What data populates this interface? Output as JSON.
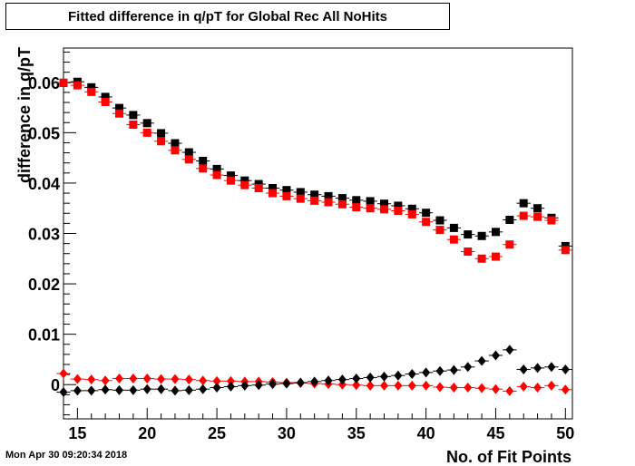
{
  "title": "Fitted difference in q/pT for Global Rec All NoHits",
  "timestamp": "Mon Apr 30 09:20:34 2018",
  "chart_data": {
    "type": "scatter",
    "title": "Fitted difference in q/pT for Global Rec All NoHits",
    "xlabel": "No. of Fit Points",
    "ylabel": "difference in q/pT",
    "xlim": [
      14,
      50.5
    ],
    "ylim": [
      -0.0068,
      0.0668
    ],
    "xticks": [
      15,
      20,
      25,
      30,
      35,
      40,
      45,
      50
    ],
    "yticks": [
      0,
      0.01,
      0.02,
      0.03,
      0.04,
      0.05,
      0.06
    ],
    "ytick_labels": [
      "0",
      "0.01",
      "0.02",
      "0.03",
      "0.04",
      "0.05",
      "0.06"
    ],
    "grid": false,
    "series": [
      {
        "marker": "square",
        "color": "#000000",
        "x": [
          14,
          15,
          16,
          17,
          18,
          19,
          20,
          21,
          22,
          23,
          24,
          25,
          26,
          27,
          28,
          29,
          30,
          31,
          32,
          33,
          34,
          35,
          36,
          37,
          38,
          39,
          40,
          41,
          42,
          43,
          44,
          45,
          46,
          47,
          48,
          49,
          50
        ],
        "y": [
          0.0599,
          0.0601,
          0.059,
          0.0571,
          0.0549,
          0.0535,
          0.0519,
          0.0499,
          0.0479,
          0.0461,
          0.0444,
          0.0428,
          0.0415,
          0.0405,
          0.0398,
          0.039,
          0.0386,
          0.0382,
          0.0377,
          0.0374,
          0.037,
          0.0366,
          0.0364,
          0.0359,
          0.0355,
          0.0349,
          0.0341,
          0.0326,
          0.0311,
          0.0298,
          0.0295,
          0.0303,
          0.0327,
          0.036,
          0.035,
          0.0331,
          0.0275
        ]
      },
      {
        "marker": "square",
        "color": "#ff0000",
        "x": [
          14,
          15,
          16,
          17,
          18,
          19,
          20,
          21,
          22,
          23,
          24,
          25,
          26,
          27,
          28,
          29,
          30,
          31,
          32,
          33,
          34,
          35,
          36,
          37,
          38,
          39,
          40,
          41,
          42,
          43,
          44,
          45,
          46,
          47,
          48,
          49,
          50
        ],
        "y": [
          0.0599,
          0.0594,
          0.0581,
          0.0561,
          0.0538,
          0.0516,
          0.05,
          0.0483,
          0.0465,
          0.0447,
          0.0429,
          0.0416,
          0.0405,
          0.0396,
          0.039,
          0.038,
          0.0374,
          0.0369,
          0.0365,
          0.0362,
          0.0358,
          0.0352,
          0.035,
          0.0348,
          0.0345,
          0.0338,
          0.0323,
          0.0307,
          0.0288,
          0.0264,
          0.025,
          0.0254,
          0.0278,
          0.0335,
          0.0333,
          0.0326,
          0.0267
        ]
      },
      {
        "marker": "diamond",
        "color": "#ff0000",
        "x": [
          14,
          15,
          16,
          17,
          18,
          19,
          20,
          21,
          22,
          23,
          24,
          25,
          26,
          27,
          28,
          29,
          30,
          31,
          32,
          33,
          34,
          35,
          36,
          37,
          38,
          39,
          40,
          41,
          42,
          43,
          44,
          45,
          46,
          47,
          48,
          49,
          50
        ],
        "y": [
          0.0022,
          0.0011,
          0.001,
          0.0008,
          0.0012,
          0.0012,
          0.0012,
          0.0011,
          0.0011,
          0.001,
          0.0008,
          0.0007,
          0.0007,
          0.0006,
          0.0006,
          0.0005,
          0.0004,
          0.0003,
          0.0002,
          0.0001,
          0.0,
          -0.0001,
          -0.0002,
          -0.0002,
          -0.0002,
          -0.0002,
          -0.0002,
          -0.0005,
          -0.0006,
          -0.0006,
          -0.0007,
          -0.0009,
          -0.0013,
          -0.0004,
          -0.0006,
          -0.0002,
          -0.001
        ]
      },
      {
        "marker": "diamond",
        "color": "#000000",
        "x": [
          14,
          15,
          16,
          17,
          18,
          19,
          20,
          21,
          22,
          23,
          24,
          25,
          26,
          27,
          28,
          29,
          30,
          31,
          32,
          33,
          34,
          35,
          36,
          37,
          38,
          39,
          40,
          41,
          42,
          43,
          44,
          45,
          46,
          47,
          48,
          49,
          50
        ],
        "y": [
          -0.0015,
          -0.0012,
          -0.0012,
          -0.001,
          -0.0011,
          -0.0011,
          -0.0009,
          -0.0009,
          -0.0012,
          -0.0011,
          -0.0009,
          -0.0006,
          -0.0004,
          -0.0002,
          -0.0001,
          0.0001,
          0.0002,
          0.0004,
          0.0006,
          0.0008,
          0.001,
          0.0012,
          0.0014,
          0.0016,
          0.0018,
          0.0021,
          0.0024,
          0.0027,
          0.0029,
          0.0035,
          0.0047,
          0.0058,
          0.0069,
          0.003,
          0.0033,
          0.0035,
          0.003
        ]
      }
    ]
  }
}
